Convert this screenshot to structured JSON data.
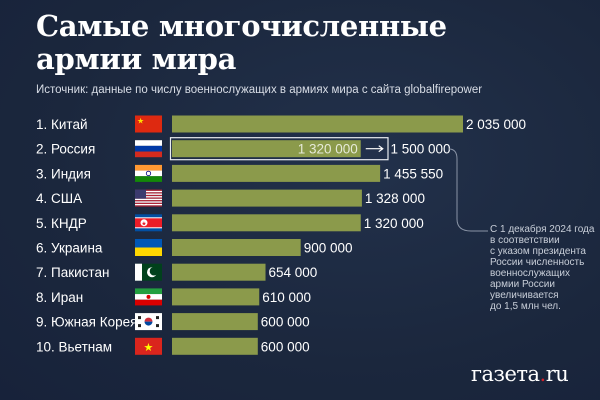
{
  "title_line1": "Самые многочисленные",
  "title_line2": "армии мира",
  "source": "Источник: данные по числу военнослужащих в армиях мира с сайта globalfirepower",
  "colors": {
    "bar": "#8b9a4b",
    "background": "#1c2940",
    "text": "#ffffff",
    "logo_dot": "#d0202a"
  },
  "chart_data": {
    "type": "bar",
    "orientation": "horizontal",
    "title": "Самые многочисленные армии мира",
    "categories": [
      "1. Китай",
      "2. Россия",
      "3. Индия",
      "4. США",
      "5. КНДР",
      "6. Украина",
      "7. Пакистан",
      "8. Иран",
      "9. Южная Корея",
      "10. Вьетнам"
    ],
    "flags": [
      "china",
      "russia",
      "india",
      "usa",
      "north-korea",
      "ukraine",
      "pakistan",
      "iran",
      "south-korea",
      "vietnam"
    ],
    "values": [
      2035000,
      1320000,
      1455550,
      1328000,
      1320000,
      900000,
      654000,
      610000,
      600000,
      600000
    ],
    "labels": [
      "2 035 000",
      "1 320 000",
      "1 455 550",
      "1 328 000",
      "1 320 000",
      "900 000",
      "654 000",
      "610 000",
      "600 000",
      "600 000"
    ],
    "highlight": {
      "index": 1,
      "target_value": 1500000,
      "target_label": "1 500 000"
    },
    "xlim": [
      0,
      2035000
    ]
  },
  "annotation": [
    "С 1 декабря 2024 года",
    "в соответствии",
    "с указом президента",
    "России численность",
    "военнослужащих",
    "армии России",
    "увеличивается",
    "до 1,5 млн чел."
  ],
  "logo": {
    "text_main": "газета",
    "dot": ".",
    "text_end": "ru"
  }
}
